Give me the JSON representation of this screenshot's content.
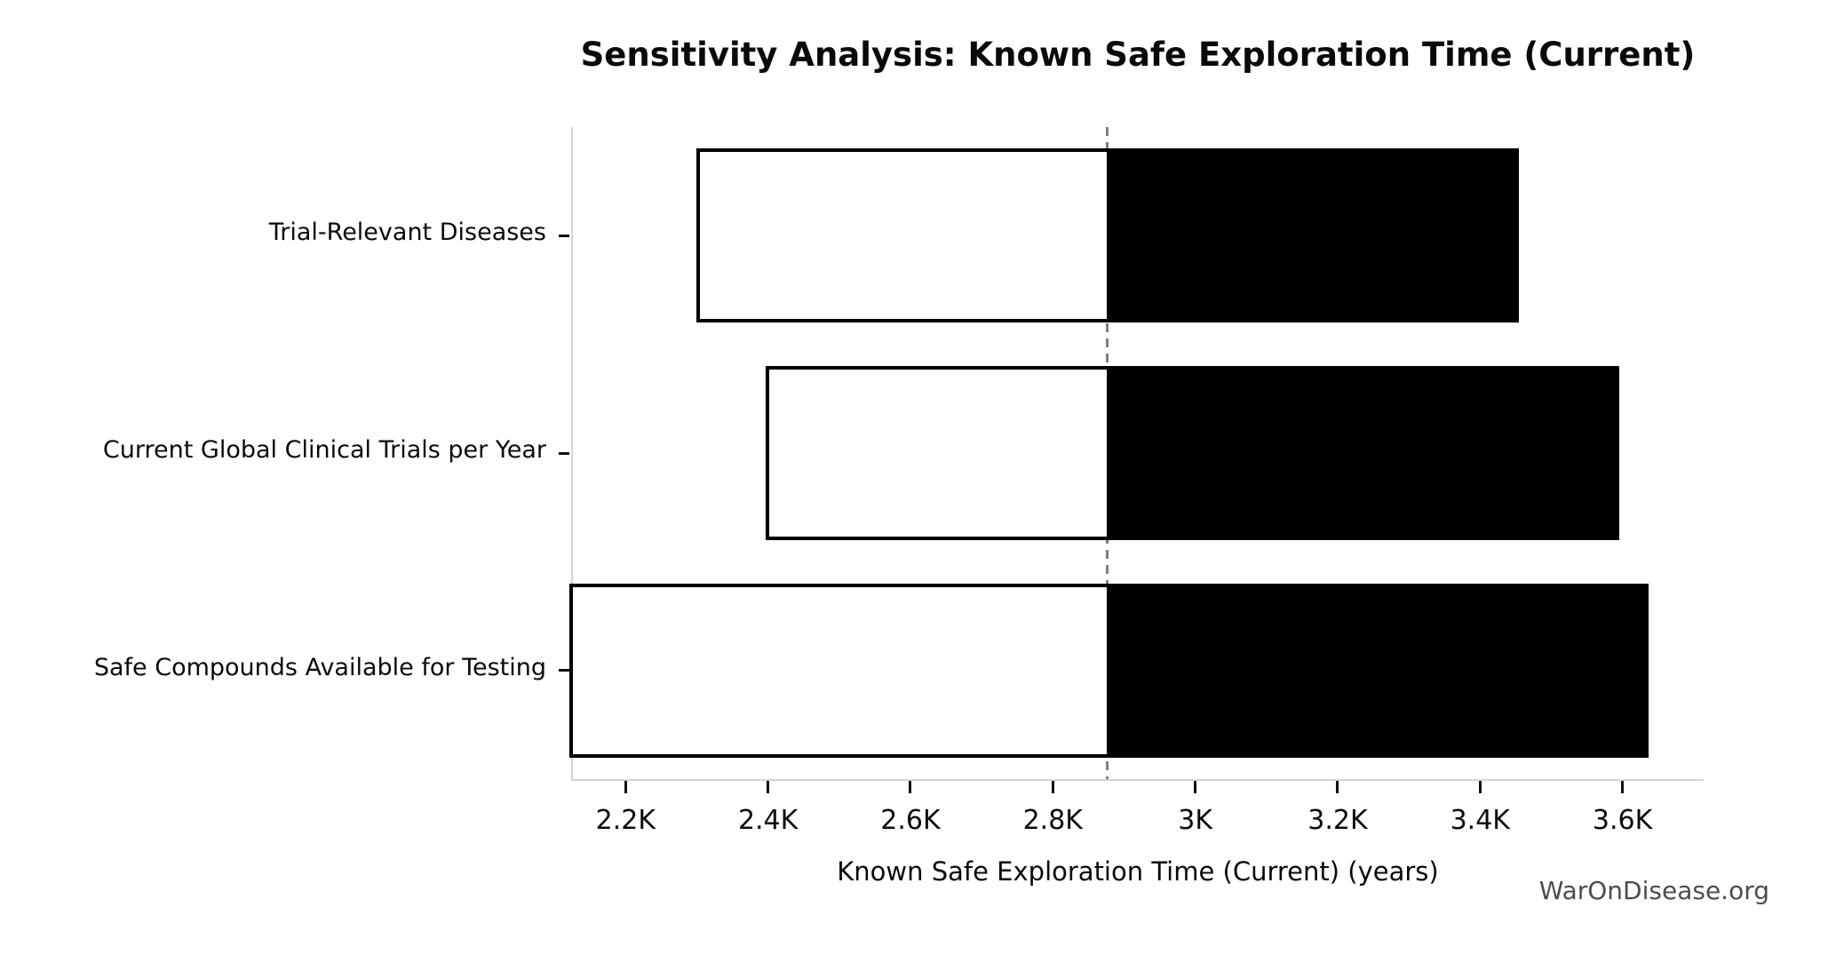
{
  "title": "Sensitivity Analysis: Known Safe Exploration Time (Current)",
  "watermark": "WarOnDisease.org",
  "chart_data": {
    "type": "bar",
    "subtype": "tornado-sensitivity",
    "orientation": "horizontal",
    "title": "Sensitivity Analysis: Known Safe Exploration Time (Current)",
    "xlabel": "Known Safe Exploration Time (Current) (years)",
    "ylabel": "",
    "categories": [
      "Trial-Relevant Diseases",
      "Current Global Clinical Trials per Year",
      "Safe Compounds Available for Testing"
    ],
    "bars": [
      {
        "label": "Trial-Relevant Diseases",
        "low": 2300,
        "high": 3455
      },
      {
        "label": "Current Global Clinical Trials per Year",
        "low": 2397,
        "high": 3595
      },
      {
        "label": "Safe Compounds Available for Testing",
        "low": 2121,
        "high": 3637
      }
    ],
    "baseline": 2876,
    "x_ticks": [
      {
        "value": 2200,
        "label": "2.2K"
      },
      {
        "value": 2400,
        "label": "2.4K"
      },
      {
        "value": 2600,
        "label": "2.6K"
      },
      {
        "value": 2800,
        "label": "2.8K"
      },
      {
        "value": 3000,
        "label": "3K"
      },
      {
        "value": 3200,
        "label": "3.2K"
      },
      {
        "value": 3400,
        "label": "3.4K"
      },
      {
        "value": 3600,
        "label": "3.6K"
      }
    ],
    "xlim": [
      2126,
      3714
    ],
    "grid": false,
    "legend": false,
    "colors": {
      "low_segment_fill": "#ffffff",
      "high_segment_fill": "#000000",
      "bar_edge": "#000000",
      "baseline_line": "#7f7f7f",
      "spine": "#d4d4d4",
      "tick": "#111111",
      "text": "#0a0a0a",
      "watermark": "#4d4d4d"
    }
  }
}
